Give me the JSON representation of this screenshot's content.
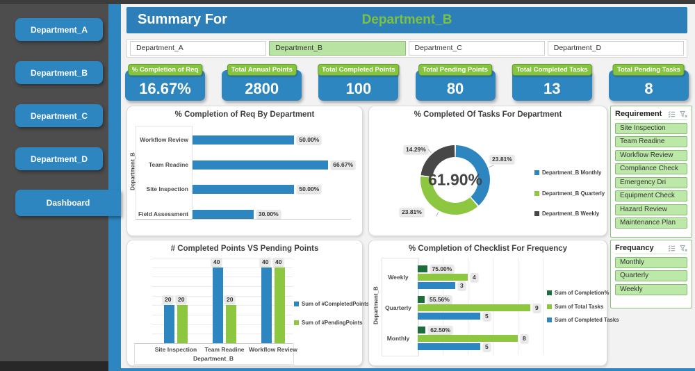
{
  "colors": {
    "blue": "#2E86C1",
    "header_blue": "#2C7FB8",
    "bright_green": "#7CC142",
    "kpi_label_green": "#86C440",
    "light_green_fill": "#BCE8A8",
    "chart_green": "#8DC63F",
    "dark_green": "#1E6B3C",
    "donut_dark": "#474747",
    "sidebar_gray": "#4d4d4d"
  },
  "icons": {
    "slicer_header_icons": [
      "multi-select-icon",
      "clear-filter-icon"
    ]
  },
  "sidebar": {
    "items": [
      "Department_A",
      "Department_B",
      "Department_C",
      "Department_D",
      "Dashboard"
    ]
  },
  "header": {
    "title_prefix": "Summary For",
    "department": "Department_B"
  },
  "department_slicer": {
    "options": [
      "Department_A",
      "Department_B",
      "Department_C",
      "Department_D"
    ],
    "selected": "Department_B"
  },
  "kpis": [
    {
      "label": "% Completion of Req",
      "value": "16.67%"
    },
    {
      "label": "Total Annual Points",
      "value": "2800"
    },
    {
      "label": "Total Completed Points",
      "value": "100"
    },
    {
      "label": "Total Pending Points",
      "value": "80"
    },
    {
      "label": "Total Completed Tasks",
      "value": "13"
    },
    {
      "label": "Total Pending Tasks",
      "value": "8"
    }
  ],
  "requirement_slicer": {
    "title": "Requirement",
    "items": [
      "Site Inspection",
      "Team Readine",
      "Workflow Review",
      "Compliance Check",
      "Emergency Dri",
      "Equipment Check",
      "Hazard Review",
      "Maintenance Plan"
    ]
  },
  "frequency_slicer": {
    "title": "Frequancy",
    "items": [
      "Monthly",
      "Quarterly",
      "Weekly"
    ]
  },
  "chart_data": [
    {
      "type": "bar",
      "orientation": "horizontal",
      "title": "% Completion of Req By Department",
      "axis_label": "Department_B",
      "categories": [
        "Workflow Review",
        "Team Readine",
        "Site Inspection",
        "Field Assessment"
      ],
      "values": [
        50.0,
        66.67,
        50.0,
        30.0
      ],
      "value_labels": [
        "50.00%",
        "66.67%",
        "50.00%",
        "30.00%"
      ],
      "xlim": [
        0,
        70
      ],
      "bar_color": "#2E86C1",
      "grid": false
    },
    {
      "type": "pie",
      "subtype": "donut",
      "title": "% Completed Of Tasks For Department",
      "center_label": "61.90%",
      "slices": [
        {
          "name": "Department_B Monthly",
          "value": 23.81,
          "label": "23.81%",
          "color": "#2E86C1"
        },
        {
          "name": "Department_B Quarterly",
          "value": 23.81,
          "label": "23.81%",
          "color": "#8DC63F"
        },
        {
          "name": "Department_B Weekly",
          "value": 14.29,
          "label": "14.29%",
          "color": "#474747"
        }
      ],
      "legend_position": "right"
    },
    {
      "type": "bar",
      "orientation": "vertical",
      "title": "# Completed Points VS Pending Points",
      "categories": [
        "Site Inspection",
        "Team Readine",
        "Workflow Review"
      ],
      "xlabel": "Department_B",
      "series": [
        {
          "name": "Sum of #CompletedPoints",
          "color": "#2E86C1",
          "values": [
            20,
            40,
            40
          ],
          "value_labels": [
            "20",
            "40",
            "40"
          ]
        },
        {
          "name": "Sum of #PendingPoints",
          "color": "#8DC63F",
          "values": [
            20,
            20,
            40
          ],
          "value_labels": [
            "20",
            "20",
            "40"
          ]
        }
      ],
      "ylim": [
        0,
        45
      ],
      "grid": true,
      "legend_position": "right"
    },
    {
      "type": "bar",
      "orientation": "horizontal",
      "title": "% Completion of Checklist For Frequency",
      "axis_label": "Department_B",
      "categories": [
        "Weekly",
        "Quarterly",
        "Monthly"
      ],
      "series": [
        {
          "name": "Sum of Completion%",
          "color": "#1E6B3C",
          "values": [
            0.75,
            0.5556,
            0.625
          ],
          "value_labels": [
            "75.00%",
            "55.56%",
            "62.50%"
          ]
        },
        {
          "name": "Sum of Total Tasks",
          "color": "#8DC63F",
          "values": [
            4,
            9,
            8
          ],
          "value_labels": [
            "4",
            "9",
            "8"
          ]
        },
        {
          "name": "Sum of Completed Tasks",
          "color": "#2E86C1",
          "values": [
            3,
            5,
            5
          ],
          "value_labels": [
            "3",
            "5",
            "5"
          ]
        }
      ],
      "xlim": [
        0,
        10
      ],
      "grid": true,
      "legend_position": "right"
    }
  ]
}
